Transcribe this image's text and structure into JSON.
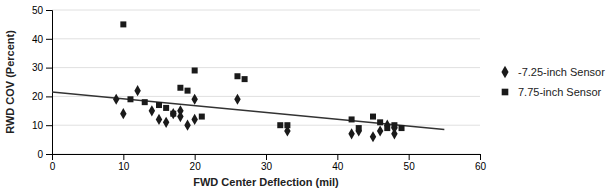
{
  "chart_data": {
    "type": "scatter",
    "xlabel": "FWD Center Deflection (mil)",
    "ylabel": "RWD COV (Percent)",
    "xlim": [
      0,
      60
    ],
    "ylim": [
      0,
      50
    ],
    "xticks": [
      0,
      10,
      20,
      30,
      40,
      50,
      60
    ],
    "yticks": [
      0,
      10,
      20,
      30,
      40,
      50
    ],
    "grid": "y",
    "legend": "right",
    "series": [
      {
        "name": "-7.25-inch Sensor",
        "type": "scatter",
        "color": "#1a1a1a",
        "marker": "diamond",
        "x": [
          9,
          10,
          12,
          14,
          15,
          16,
          17,
          18,
          18,
          19,
          20,
          20,
          26,
          33,
          42,
          43,
          45,
          46,
          47,
          48,
          48
        ],
        "values": [
          19,
          14,
          22,
          15,
          12,
          11,
          14,
          15,
          13,
          10,
          12,
          19,
          19,
          8,
          7,
          8,
          6,
          8,
          10,
          7,
          9
        ]
      },
      {
        "name": "7.75-inch Sensor",
        "type": "scatter",
        "color": "#1a1a1a",
        "marker": "square",
        "x": [
          10,
          11,
          13,
          15,
          16,
          17,
          18,
          19,
          20,
          21,
          26,
          27,
          32,
          33,
          42,
          43,
          45,
          46,
          47,
          48,
          49
        ],
        "values": [
          45,
          19,
          18,
          17,
          16,
          14,
          23,
          22,
          29,
          13,
          27,
          26,
          10,
          10,
          12,
          9,
          13,
          11,
          9,
          10,
          9
        ]
      },
      {
        "type": "line",
        "color": "#333333",
        "x": [
          0,
          55
        ],
        "values": [
          21.5,
          8.5
        ]
      }
    ]
  }
}
